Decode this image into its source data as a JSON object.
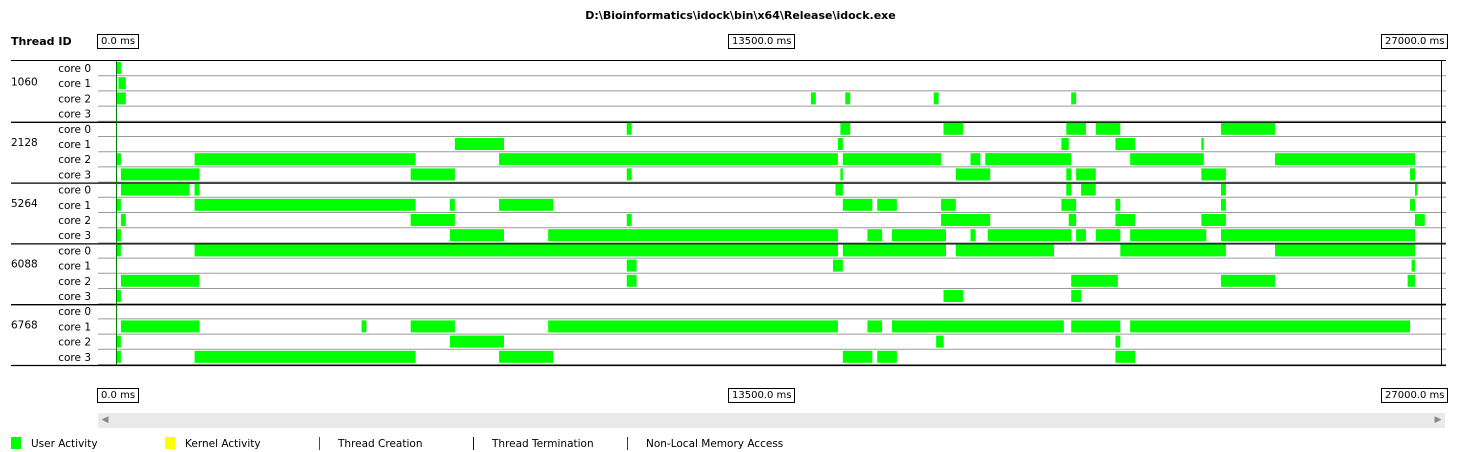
{
  "title": "D:\\Bioinformatics\\idock\\bin\\x64\\Release\\idock.exe",
  "thread_id_header": "Thread ID",
  "axis": {
    "start_label": "0.0 ms",
    "mid_label": "13500.0 ms",
    "end_label": "27000.0 ms",
    "max_ms": 27000
  },
  "colors": {
    "user": "#00ff00",
    "kernel": "#ffff00",
    "creation": "#008000",
    "termination": "#000080",
    "memory": "#c00000",
    "grid": "#9a9a9a",
    "separator": "#000000"
  },
  "legend": [
    {
      "label": "User Activity",
      "kind": "swatch",
      "color": "#00ff00"
    },
    {
      "label": "Kernel Activity",
      "kind": "swatch",
      "color": "#ffff00"
    },
    {
      "label": "Thread Creation",
      "kind": "line",
      "color": "#008000"
    },
    {
      "label": "Thread Termination",
      "kind": "line",
      "color": "#000080"
    },
    {
      "label": "Non-Local Memory Access",
      "kind": "line",
      "color": "#c00000"
    }
  ],
  "chart_data": {
    "type": "timeline",
    "x_unit": "ms",
    "xlim": [
      0,
      27000
    ],
    "threads": [
      {
        "id": "1060",
        "creation_ms": 0,
        "termination_ms": 26980,
        "cores": [
          {
            "label": "core 0",
            "user_ms": [
              [
                0,
                100
              ]
            ]
          },
          {
            "label": "core 1",
            "user_ms": [
              [
                50,
                200
              ]
            ]
          },
          {
            "label": "core 2",
            "user_ms": [
              [
                0,
                200
              ],
              [
                14150,
                14250
              ],
              [
                14850,
                14950
              ],
              [
                16650,
                16750
              ],
              [
                19450,
                19550
              ]
            ]
          },
          {
            "label": "core 3",
            "user_ms": []
          }
        ]
      },
      {
        "id": "2128",
        "creation_ms": 0,
        "termination_ms": 26980,
        "cores": [
          {
            "label": "core 0",
            "user_ms": [
              [
                10400,
                10500
              ],
              [
                14750,
                14950
              ],
              [
                16850,
                17250
              ],
              [
                19350,
                19750
              ],
              [
                19950,
                20450
              ],
              [
                22500,
                23600
              ]
            ]
          },
          {
            "label": "core 1",
            "user_ms": [
              [
                6900,
                7900
              ],
              [
                14700,
                14800
              ],
              [
                19250,
                19400
              ],
              [
                20350,
                20750
              ],
              [
                22100,
                22150
              ]
            ]
          },
          {
            "label": "core 2",
            "user_ms": [
              [
                0,
                100
              ],
              [
                1600,
                6100
              ],
              [
                7800,
                14700
              ],
              [
                14800,
                16800
              ],
              [
                17400,
                17600
              ],
              [
                17700,
                17900
              ],
              [
                17750,
                19450
              ],
              [
                20650,
                22150
              ],
              [
                23600,
                26450
              ]
            ]
          },
          {
            "label": "core 3",
            "user_ms": [
              [
                100,
                1700
              ],
              [
                6000,
                6900
              ],
              [
                10400,
                10500
              ],
              [
                14750,
                14800
              ],
              [
                17100,
                17800
              ],
              [
                19350,
                19450
              ],
              [
                19550,
                19950
              ],
              [
                22100,
                22600
              ],
              [
                26350,
                26450
              ]
            ]
          }
        ]
      },
      {
        "id": "5264",
        "creation_ms": 0,
        "termination_ms": 26980,
        "cores": [
          {
            "label": "core 0",
            "user_ms": [
              [
                100,
                1500
              ],
              [
                1600,
                1700
              ],
              [
                14650,
                14800
              ],
              [
                19350,
                19450
              ],
              [
                19650,
                19950
              ],
              [
                22500,
                22600
              ],
              [
                26450,
                26500
              ]
            ]
          },
          {
            "label": "core 1",
            "user_ms": [
              [
                0,
                100
              ],
              [
                1600,
                6100
              ],
              [
                6800,
                6900
              ],
              [
                7800,
                8900
              ],
              [
                14800,
                15400
              ],
              [
                15500,
                15900
              ],
              [
                16800,
                17100
              ],
              [
                19250,
                19550
              ],
              [
                20350,
                20450
              ],
              [
                22500,
                22600
              ],
              [
                26350,
                26450
              ]
            ]
          },
          {
            "label": "core 2",
            "user_ms": [
              [
                100,
                200
              ],
              [
                6000,
                6900
              ],
              [
                10400,
                10500
              ],
              [
                16800,
                17800
              ],
              [
                19400,
                19550
              ],
              [
                20350,
                20750
              ],
              [
                22100,
                22600
              ],
              [
                26450,
                26650
              ]
            ]
          },
          {
            "label": "core 3",
            "user_ms": [
              [
                0,
                100
              ],
              [
                6800,
                7900
              ],
              [
                8800,
                14700
              ],
              [
                15300,
                15600
              ],
              [
                15800,
                16900
              ],
              [
                17400,
                17500
              ],
              [
                17750,
                19450
              ],
              [
                19550,
                19750
              ],
              [
                19950,
                20450
              ],
              [
                20650,
                22200
              ],
              [
                22500,
                26450
              ]
            ]
          }
        ]
      },
      {
        "id": "6088",
        "creation_ms": 0,
        "termination_ms": 26980,
        "cores": [
          {
            "label": "core 0",
            "user_ms": [
              [
                0,
                100
              ],
              [
                1600,
                14700
              ],
              [
                14800,
                16900
              ],
              [
                17100,
                19100
              ],
              [
                20450,
                22600
              ],
              [
                23600,
                26450
              ]
            ]
          },
          {
            "label": "core 1",
            "user_ms": [
              [
                10400,
                10600
              ],
              [
                14600,
                14800
              ],
              [
                26380,
                26450
              ]
            ]
          },
          {
            "label": "core 2",
            "user_ms": [
              [
                100,
                1700
              ],
              [
                10400,
                10600
              ],
              [
                19450,
                20400
              ],
              [
                22500,
                23600
              ],
              [
                26300,
                26450
              ]
            ]
          },
          {
            "label": "core 3",
            "user_ms": [
              [
                0,
                100
              ],
              [
                16850,
                17250
              ],
              [
                19450,
                19650
              ]
            ]
          }
        ]
      },
      {
        "id": "6768",
        "creation_ms": 0,
        "termination_ms": 26980,
        "cores": [
          {
            "label": "core 0",
            "user_ms": []
          },
          {
            "label": "core 1",
            "user_ms": [
              [
                100,
                1700
              ],
              [
                5000,
                5100
              ],
              [
                6000,
                6900
              ],
              [
                8800,
                14700
              ],
              [
                15300,
                15600
              ],
              [
                15800,
                19300
              ],
              [
                19450,
                20450
              ],
              [
                20650,
                26350
              ]
            ]
          },
          {
            "label": "core 2",
            "user_ms": [
              [
                0,
                100
              ],
              [
                6800,
                7900
              ],
              [
                16700,
                16850
              ],
              [
                20350,
                20450
              ]
            ]
          },
          {
            "label": "core 3",
            "user_ms": [
              [
                0,
                100
              ],
              [
                1600,
                6100
              ],
              [
                7800,
                8900
              ],
              [
                14800,
                15400
              ],
              [
                15500,
                15900
              ],
              [
                20350,
                20750
              ]
            ]
          }
        ]
      }
    ]
  }
}
